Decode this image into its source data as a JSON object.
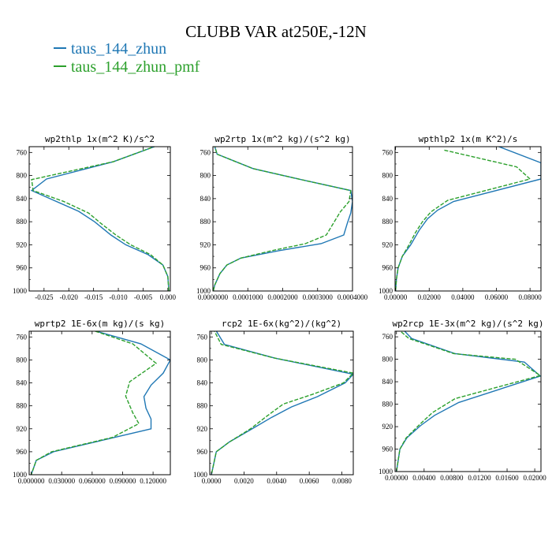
{
  "title": "CLUBB VAR at250E,-12N",
  "legend": [
    {
      "label": "taus_144_zhun",
      "color": "#1f77b4"
    },
    {
      "label": "taus_144_zhun_pmf",
      "color": "#2ca02c"
    }
  ],
  "chart_data": [
    {
      "type": "line",
      "title": "wp2thlp  1x(m^2 K)/s^2",
      "xlim": [
        -0.028,
        0.0005
      ],
      "ylim": [
        1000,
        750
      ],
      "xticks": [
        -0.025,
        -0.02,
        -0.015,
        -0.01,
        -0.005,
        0.0
      ],
      "xtick_labels": [
        "-0.025",
        "-0.020",
        "-0.015",
        "-0.010",
        "-0.005",
        "0.000"
      ],
      "yticks": [
        760,
        800,
        840,
        880,
        920,
        960,
        1000
      ],
      "ytick_labels": [
        "760",
        "800",
        "840",
        "880",
        "920",
        "960",
        "1000"
      ],
      "series": [
        {
          "name": "taus_144_zhun",
          "color": "#1f77b4",
          "dash": "",
          "points": [
            [
              -0.0005,
              743
            ],
            [
              -0.011,
              776
            ],
            [
              -0.0245,
              806
            ],
            [
              -0.0275,
              826
            ],
            [
              -0.023,
              843
            ],
            [
              -0.018,
              862
            ],
            [
              -0.0148,
              880
            ],
            [
              -0.0115,
              903
            ],
            [
              -0.0085,
              920
            ],
            [
              -0.004,
              937
            ],
            [
              -0.001,
              955
            ],
            [
              0,
              975
            ],
            [
              0.0002,
              1000
            ]
          ]
        },
        {
          "name": "taus_144_zhun_pmf",
          "color": "#2ca02c",
          "dash": "5,2",
          "points": [
            [
              -0.0012,
              745
            ],
            [
              -0.011,
              776
            ],
            [
              -0.0275,
              807
            ],
            [
              -0.0272,
              826
            ],
            [
              -0.021,
              845
            ],
            [
              -0.016,
              865
            ],
            [
              -0.0135,
              883
            ],
            [
              -0.0105,
              903
            ],
            [
              -0.0075,
              920
            ],
            [
              -0.0035,
              937
            ],
            [
              -0.001,
              955
            ],
            [
              0,
              975
            ],
            [
              0.0002,
              1000
            ]
          ]
        }
      ]
    },
    {
      "type": "line",
      "title": "wp2rtp  1x(m^2 kg)/(s^2 kg)",
      "xlim": [
        0,
        0.0004
      ],
      "ylim": [
        1000,
        750
      ],
      "xticks": [
        0,
        0.0001,
        0.0002,
        0.0003,
        0.0004
      ],
      "xtick_labels": [
        "0.0000000",
        "0.0001000",
        "0.0002000",
        "0.0003000",
        "0.0004000"
      ],
      "yticks": [
        760,
        800,
        840,
        880,
        920,
        960,
        1000
      ],
      "ytick_labels": [
        "760",
        "800",
        "840",
        "880",
        "920",
        "960",
        "1000"
      ],
      "series": [
        {
          "name": "taus_144_zhun",
          "color": "#1f77b4",
          "dash": "",
          "points": [
            [
              3e-06,
              745
            ],
            [
              1.2e-05,
              763
            ],
            [
              0.000115,
              788
            ],
            [
              0.000245,
              806
            ],
            [
              0.000395,
              826
            ],
            [
              0.0004,
              845
            ],
            [
              0.000395,
              865
            ],
            [
              0.000385,
              883
            ],
            [
              0.000375,
              903
            ],
            [
              0.00031,
              918
            ],
            [
              0.00019,
              930
            ],
            [
              8e-05,
              943
            ],
            [
              4e-05,
              955
            ],
            [
              2e-05,
              970
            ],
            [
              5e-06,
              990
            ],
            [
              1e-06,
              1000
            ]
          ]
        },
        {
          "name": "taus_144_zhun_pmf",
          "color": "#2ca02c",
          "dash": "5,2",
          "points": [
            [
              3e-06,
              745
            ],
            [
              1.2e-05,
              763
            ],
            [
              0.000115,
              788
            ],
            [
              0.000245,
              806
            ],
            [
              0.000395,
              826
            ],
            [
              0.00039,
              845
            ],
            [
              0.000365,
              863
            ],
            [
              0.000345,
              883
            ],
            [
              0.000325,
              903
            ],
            [
              0.000265,
              918
            ],
            [
              0.00017,
              930
            ],
            [
              8e-05,
              943
            ],
            [
              4e-05,
              955
            ],
            [
              2e-05,
              970
            ],
            [
              5e-06,
              990
            ],
            [
              1e-06,
              1000
            ]
          ]
        }
      ]
    },
    {
      "type": "line",
      "title": "wpthlp2  1x(m K^2)/s",
      "xlim": [
        -0.0003,
        0.0865
      ],
      "ylim": [
        1000,
        750
      ],
      "xticks": [
        0,
        0.02,
        0.04,
        0.06,
        0.08
      ],
      "xtick_labels": [
        "0.00000",
        "0.02000",
        "0.04000",
        "0.06000",
        "0.08000"
      ],
      "yticks": [
        760,
        800,
        840,
        880,
        920,
        960,
        1000
      ],
      "ytick_labels": [
        "760",
        "800",
        "840",
        "880",
        "920",
        "960",
        "1000"
      ],
      "series": [
        {
          "name": "taus_144_zhun",
          "color": "#1f77b4",
          "dash": "",
          "points": [
            [
              0.057,
              745
            ],
            [
              0.0865,
              778
            ],
            [
              0.0865,
              806
            ],
            [
              0.0345,
              845
            ],
            [
              0.025,
              860
            ],
            [
              0.019,
              875
            ],
            [
              0.014,
              895
            ],
            [
              0.009,
              920
            ],
            [
              0.004,
              940
            ],
            [
              0.0015,
              960
            ],
            [
              0.0005,
              980
            ],
            [
              0,
              1000
            ]
          ]
        },
        {
          "name": "taus_144_zhun_pmf",
          "color": "#2ca02c",
          "dash": "5,2",
          "points": [
            [
              0.029,
              756
            ],
            [
              0.072,
              785
            ],
            [
              0.08,
              806
            ],
            [
              0.031,
              843
            ],
            [
              0.021,
              863
            ],
            [
              0.016,
              880
            ],
            [
              0.012,
              898
            ],
            [
              0.008,
              920
            ],
            [
              0.004,
              940
            ],
            [
              0.0015,
              960
            ],
            [
              0.0005,
              980
            ],
            [
              0,
              1000
            ]
          ]
        }
      ]
    },
    {
      "type": "line",
      "title": "wprtp2  1E-6x(m kg)/(s kg)",
      "xlim": [
        -0.002,
        0.137
      ],
      "ylim": [
        1000,
        750
      ],
      "xticks": [
        0,
        0.03,
        0.06,
        0.09,
        0.12
      ],
      "xtick_labels": [
        "0.000000",
        "0.030000",
        "0.060000",
        "0.090000",
        "0.120000"
      ],
      "yticks": [
        760,
        800,
        840,
        880,
        920,
        960,
        1000
      ],
      "ytick_labels": [
        "760",
        "800",
        "840",
        "880",
        "920",
        "960",
        "1000"
      ],
      "series": [
        {
          "name": "taus_144_zhun",
          "color": "#1f77b4",
          "dash": "",
          "points": [
            [
              0.058,
              747
            ],
            [
              0.108,
              772
            ],
            [
              0.137,
              800
            ],
            [
              0.13,
              823
            ],
            [
              0.118,
              844
            ],
            [
              0.111,
              864
            ],
            [
              0.113,
              884
            ],
            [
              0.118,
              903
            ],
            [
              0.118,
              920
            ],
            [
              0.07,
              940
            ],
            [
              0.022,
              960
            ],
            [
              0.005,
              975
            ],
            [
              0,
              1000
            ]
          ]
        },
        {
          "name": "taus_144_zhun_pmf",
          "color": "#2ca02c",
          "dash": "5,2",
          "points": [
            [
              0.058,
              747
            ],
            [
              0.1,
              772
            ],
            [
              0.123,
              806
            ],
            [
              0.097,
              838
            ],
            [
              0.093,
              863
            ],
            [
              0.1,
              892
            ],
            [
              0.106,
              911
            ],
            [
              0.08,
              935
            ],
            [
              0.02,
              960
            ],
            [
              0.005,
              975
            ],
            [
              0,
              1000
            ]
          ]
        }
      ]
    },
    {
      "type": "line",
      "title": "rcp2  1E-6x(kg^2)/(kg^2)",
      "xlim": [
        -0.0001,
        0.0087
      ],
      "ylim": [
        1000,
        750
      ],
      "xticks": [
        0,
        0.002,
        0.004,
        0.006,
        0.008
      ],
      "xtick_labels": [
        "0.0000",
        "0.0020",
        "0.0040",
        "0.0060",
        "0.0080"
      ],
      "yticks": [
        760,
        800,
        840,
        880,
        920,
        960,
        1000
      ],
      "ytick_labels": [
        "760",
        "800",
        "840",
        "880",
        "920",
        "960",
        "1000"
      ],
      "series": [
        {
          "name": "taus_144_zhun",
          "color": "#1f77b4",
          "dash": "",
          "points": [
            [
              0.0002,
              745
            ],
            [
              0.0008,
              773
            ],
            [
              0.0039,
              797
            ],
            [
              0.0087,
              825
            ],
            [
              0.0082,
              840
            ],
            [
              0.0065,
              864
            ],
            [
              0.0049,
              882
            ],
            [
              0.0037,
              900
            ],
            [
              0.0025,
              920
            ],
            [
              0.0011,
              943
            ],
            [
              0.0003,
              960
            ],
            [
              0,
              1000
            ]
          ]
        },
        {
          "name": "taus_144_zhun_pmf",
          "color": "#2ca02c",
          "dash": "5,2",
          "points": [
            [
              0.0001,
              745
            ],
            [
              0.0006,
              773
            ],
            [
              0.0039,
              797
            ],
            [
              0.0087,
              823
            ],
            [
              0.0081,
              840
            ],
            [
              0.0062,
              860
            ],
            [
              0.0044,
              877
            ],
            [
              0.0034,
              898
            ],
            [
              0.0024,
              920
            ],
            [
              0.0011,
              943
            ],
            [
              0.0003,
              960
            ],
            [
              0,
              1000
            ]
          ]
        }
      ]
    },
    {
      "type": "line",
      "title": "wp2rcp  1E-3x(m^2 kg)/(s^2 kg)",
      "xlim": [
        -0.0002,
        0.0209
      ],
      "ylim": [
        1000,
        750
      ],
      "xticks": [
        0,
        0.004,
        0.008,
        0.012,
        0.016,
        0.02
      ],
      "xtick_labels": [
        "0.00000",
        "0.00400",
        "0.00800",
        "0.01200",
        "0.01600",
        "0.02000"
      ],
      "yticks": [
        760,
        800,
        840,
        880,
        920,
        960,
        1000
      ],
      "ytick_labels": [
        "760",
        "800",
        "840",
        "880",
        "920",
        "960",
        "1000"
      ],
      "series": [
        {
          "name": "taus_144_zhun",
          "color": "#1f77b4",
          "dash": "",
          "points": [
            [
              0.0008,
              745
            ],
            [
              0.0022,
              763
            ],
            [
              0.0085,
              790
            ],
            [
              0.0185,
              805
            ],
            [
              0.0208,
              830
            ],
            [
              0.009,
              877
            ],
            [
              0.0055,
              900
            ],
            [
              0.0035,
              918
            ],
            [
              0.0015,
              940
            ],
            [
              0.0005,
              960
            ],
            [
              0,
              1000
            ]
          ]
        },
        {
          "name": "taus_144_zhun_pmf",
          "color": "#2ca02c",
          "dash": "5,2",
          "points": [
            [
              0.0001,
              745
            ],
            [
              0.0018,
              763
            ],
            [
              0.0083,
              790
            ],
            [
              0.0172,
              800
            ],
            [
              0.0208,
              829
            ],
            [
              0.0085,
              870
            ],
            [
              0.0052,
              895
            ],
            [
              0.0032,
              918
            ],
            [
              0.0014,
              940
            ],
            [
              0.0005,
              960
            ],
            [
              0,
              1000
            ]
          ]
        }
      ]
    }
  ]
}
